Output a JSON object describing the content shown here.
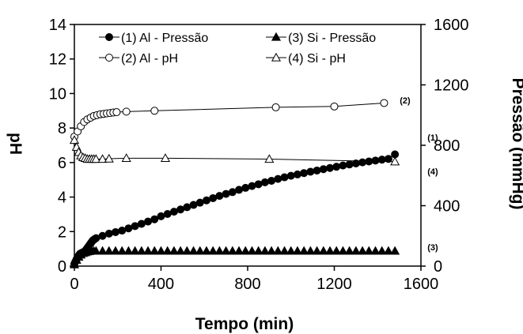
{
  "chart_data": {
    "type": "scatter",
    "xlabel": "Tempo (min)",
    "ylabel": "pH",
    "y2label": "Pressão (mmHg)",
    "xlim": [
      0,
      1600
    ],
    "ylim": [
      0,
      14
    ],
    "y2lim": [
      0,
      1600
    ],
    "xticks": [
      "0",
      "400",
      "800",
      "1200",
      "1600"
    ],
    "yticks": [
      "0",
      "2",
      "4",
      "6",
      "8",
      "10",
      "12",
      "14"
    ],
    "y2ticks": [
      "0",
      "400",
      "800",
      "1200",
      "1600"
    ],
    "grid": false,
    "legend_position": "top",
    "series": [
      {
        "name": "(1) Al - Pressão",
        "tag": "(1)",
        "axis": "right",
        "marker": "filled-circle",
        "line": false,
        "x": [
          0,
          5,
          10,
          15,
          20,
          25,
          30,
          35,
          40,
          45,
          50,
          55,
          60,
          65,
          70,
          75,
          80,
          85,
          90,
          95,
          100,
          130,
          160,
          190,
          220,
          250,
          280,
          310,
          340,
          370,
          400,
          430,
          460,
          490,
          520,
          550,
          580,
          610,
          640,
          670,
          700,
          730,
          760,
          790,
          820,
          850,
          880,
          910,
          940,
          970,
          1000,
          1030,
          1060,
          1090,
          1120,
          1150,
          1180,
          1210,
          1240,
          1270,
          1300,
          1330,
          1360,
          1390,
          1420,
          1450,
          1480
        ],
        "y": [
          15,
          30,
          45,
          60,
          70,
          80,
          85,
          88,
          92,
          95,
          100,
          110,
          120,
          130,
          140,
          150,
          160,
          170,
          175,
          180,
          185,
          200,
          215,
          225,
          235,
          250,
          265,
          280,
          295,
          310,
          330,
          345,
          360,
          375,
          390,
          405,
          420,
          435,
          450,
          465,
          478,
          490,
          505,
          518,
          530,
          542,
          555,
          565,
          577,
          588,
          598,
          607,
          616,
          625,
          633,
          642,
          650,
          658,
          666,
          673,
          680,
          687,
          693,
          699,
          705,
          710,
          740
        ]
      },
      {
        "name": "(2) Al - pH",
        "tag": "(2)",
        "axis": "left",
        "marker": "open-circle",
        "line": true,
        "x": [
          0,
          15,
          30,
          45,
          60,
          75,
          90,
          105,
          120,
          135,
          150,
          165,
          180,
          195,
          240,
          370,
          930,
          1200,
          1430
        ],
        "y": [
          7.5,
          7.8,
          8.1,
          8.35,
          8.5,
          8.6,
          8.7,
          8.75,
          8.8,
          8.82,
          8.85,
          8.87,
          8.9,
          8.92,
          8.95,
          9.0,
          9.2,
          9.25,
          9.45
        ]
      },
      {
        "name": "(3) Si - Pressão",
        "tag": "(3)",
        "axis": "right",
        "marker": "filled-triangle",
        "line": false,
        "x": [
          0,
          10,
          20,
          30,
          40,
          50,
          60,
          70,
          80,
          90,
          100,
          130,
          160,
          190,
          220,
          250,
          280,
          310,
          340,
          370,
          400,
          430,
          460,
          490,
          520,
          550,
          580,
          610,
          640,
          670,
          700,
          730,
          760,
          790,
          820,
          850,
          880,
          910,
          940,
          970,
          1000,
          1030,
          1060,
          1090,
          1120,
          1150,
          1180,
          1210,
          1240,
          1270,
          1300,
          1330,
          1360,
          1390,
          1420,
          1450,
          1480
        ],
        "y": [
          10,
          40,
          60,
          75,
          85,
          90,
          95,
          98,
          100,
          100,
          100,
          100,
          100,
          100,
          100,
          100,
          100,
          100,
          100,
          100,
          100,
          100,
          100,
          100,
          100,
          100,
          100,
          100,
          100,
          100,
          100,
          100,
          100,
          100,
          100,
          100,
          100,
          100,
          100,
          100,
          100,
          100,
          100,
          100,
          100,
          100,
          100,
          100,
          100,
          100,
          100,
          100,
          100,
          100,
          100,
          100,
          100
        ]
      },
      {
        "name": "(4) Si - pH",
        "tag": "(4)",
        "axis": "left",
        "marker": "open-triangle",
        "line": true,
        "x": [
          0,
          10,
          20,
          30,
          40,
          50,
          60,
          70,
          80,
          90,
          100,
          130,
          160,
          240,
          420,
          900,
          1480
        ],
        "y": [
          7.3,
          6.9,
          6.6,
          6.4,
          6.3,
          6.25,
          6.2,
          6.2,
          6.2,
          6.2,
          6.2,
          6.2,
          6.22,
          6.25,
          6.25,
          6.2,
          6.05
        ]
      }
    ]
  }
}
